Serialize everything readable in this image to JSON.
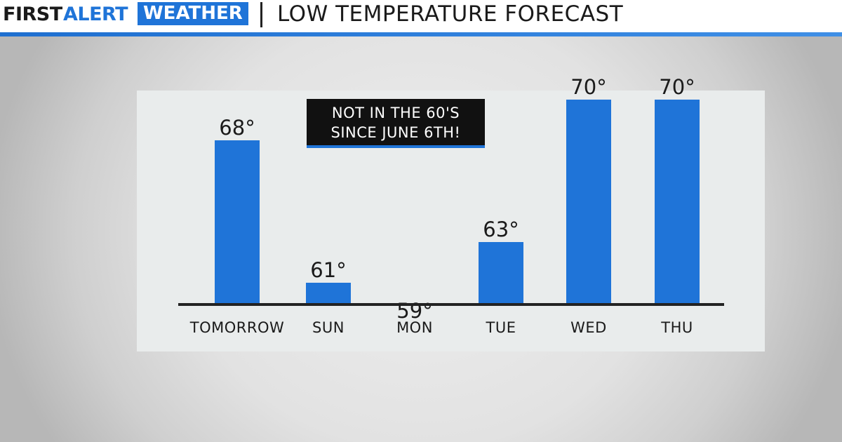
{
  "header": {
    "brand_first": "FIRST",
    "brand_alert": "ALERT",
    "brand_weather": "WEATHER",
    "title": "LOW TEMPERATURE FORECAST"
  },
  "callout": {
    "line1": "NOT IN THE 60'S",
    "line2": "SINCE JUNE 6TH!"
  },
  "colors": {
    "bar": "#1f74d8",
    "accent": "#1f74d8",
    "axis": "#222222"
  },
  "chart_data": {
    "type": "bar",
    "title": "LOW TEMPERATURE FORECAST",
    "categories": [
      "TOMORROW",
      "SUN",
      "MON",
      "TUE",
      "WED",
      "THU"
    ],
    "values": [
      68,
      61,
      59,
      63,
      70,
      70
    ],
    "value_labels": [
      "68°",
      "61°",
      "59°",
      "63°",
      "70°",
      "70°"
    ],
    "unit": "°",
    "grid": false,
    "legend": "none"
  }
}
